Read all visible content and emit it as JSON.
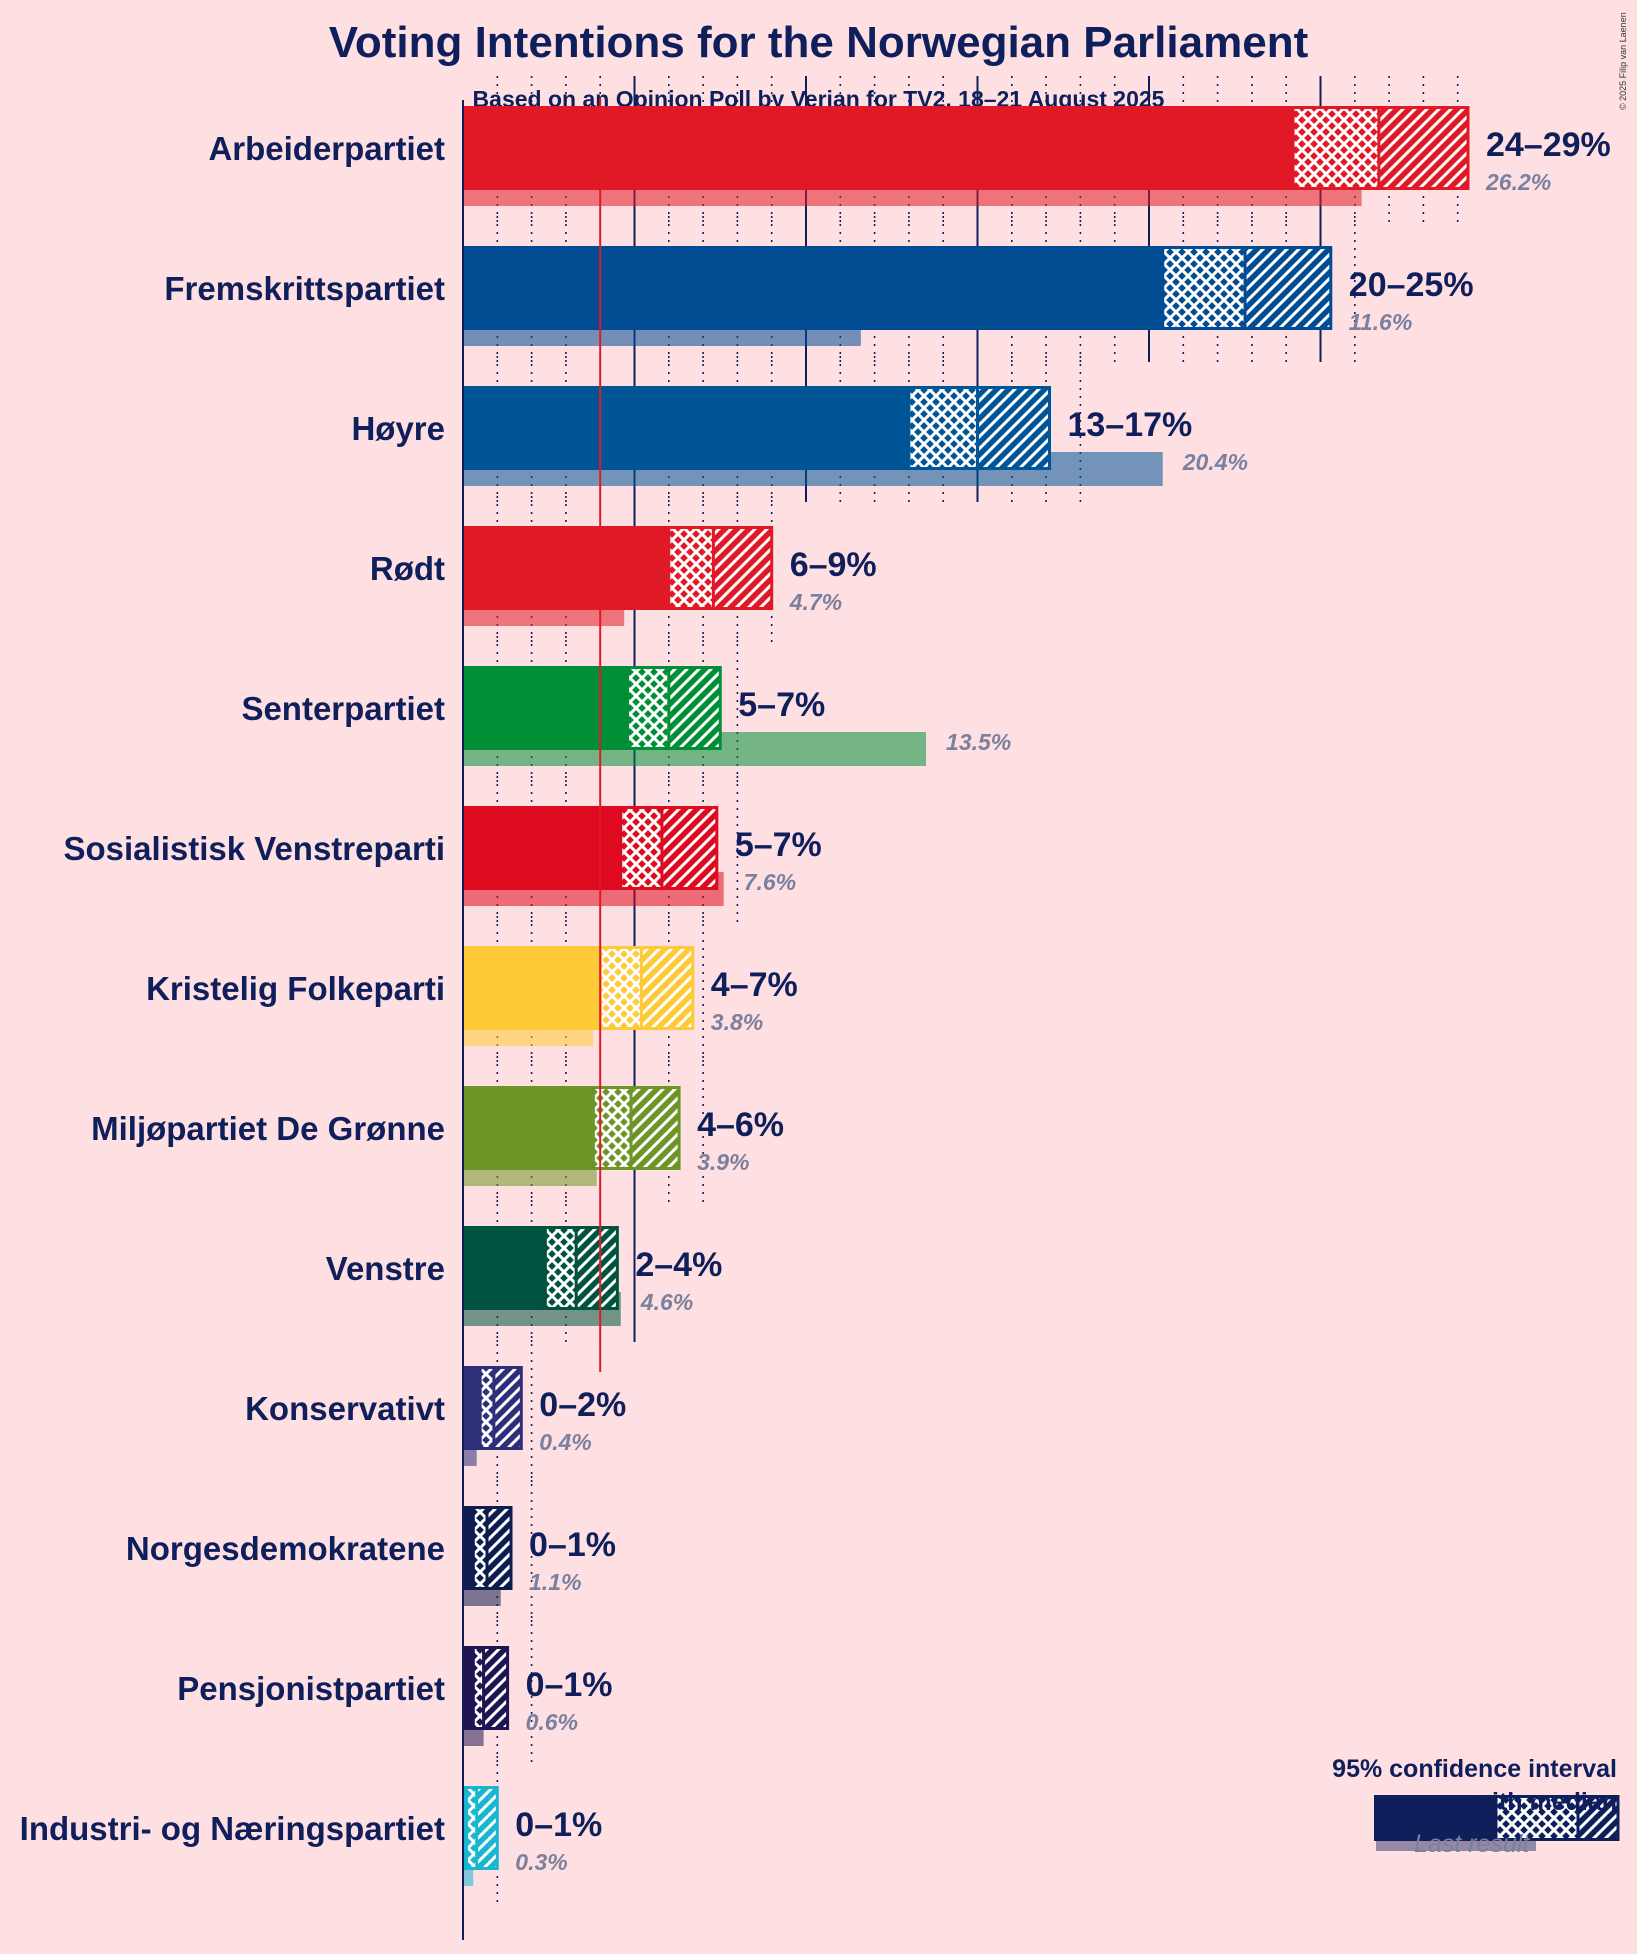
{
  "title": "Voting Intentions for the Norwegian Parliament",
  "subtitle": "Based on an Opinion Poll by Verian for TV2, 18–21 August 2025",
  "copyright": "© 2025 Filip van Laenen",
  "legend": {
    "line1": "95% confidence interval",
    "line2": "with median",
    "last_result": "Last result"
  },
  "chart_data": {
    "type": "bar",
    "orientation": "horizontal",
    "title": "Voting Intentions for the Norwegian Parliament",
    "subtitle": "Based on an Opinion Poll by Verian for TV2, 18–21 August 2025",
    "unit": "%",
    "threshold": 4,
    "x_range": [
      0,
      30
    ],
    "parties": [
      {
        "name": "Arbeiderpartiet",
        "color": "#E11926",
        "low": 24.2,
        "median": 26.7,
        "high": 29.3,
        "range_label": "24–29%",
        "last": 26.2,
        "last_label": "26.2%"
      },
      {
        "name": "Fremskrittspartiet",
        "color": "#024C93",
        "low": 20.4,
        "median": 22.8,
        "high": 25.3,
        "range_label": "20–25%",
        "last": 11.6,
        "last_label": "11.6%"
      },
      {
        "name": "Høyre",
        "color": "#005596",
        "low": 13.0,
        "median": 15.0,
        "high": 17.1,
        "range_label": "13–17%",
        "last": 20.4,
        "last_label": "20.4%"
      },
      {
        "name": "Rødt",
        "color": "#E11926",
        "low": 6.0,
        "median": 7.3,
        "high": 9.0,
        "range_label": "6–9%",
        "last": 4.7,
        "last_label": "4.7%"
      },
      {
        "name": "Senterpartiet",
        "color": "#008E36",
        "low": 4.8,
        "median": 6.0,
        "high": 7.5,
        "range_label": "5–7%",
        "last": 13.5,
        "last_label": "13.5%"
      },
      {
        "name": "Sosialistisk Venstreparti",
        "color": "#DE0A1F",
        "low": 4.6,
        "median": 5.8,
        "high": 7.4,
        "range_label": "5–7%",
        "last": 7.6,
        "last_label": "7.6%"
      },
      {
        "name": "Kristelig Folkeparti",
        "color": "#FFCA38",
        "low": 4.0,
        "median": 5.2,
        "high": 6.7,
        "range_label": "4–7%",
        "last": 3.8,
        "last_label": "3.8%"
      },
      {
        "name": "Miljøpartiet De Grønne",
        "color": "#6D9526",
        "low": 3.8,
        "median": 4.9,
        "high": 6.3,
        "range_label": "4–6%",
        "last": 3.9,
        "last_label": "3.9%"
      },
      {
        "name": "Venstre",
        "color": "#00533E",
        "low": 2.4,
        "median": 3.3,
        "high": 4.5,
        "range_label": "2–4%",
        "last": 4.6,
        "last_label": "4.6%"
      },
      {
        "name": "Konservativt",
        "color": "#2F2E79",
        "low": 0.5,
        "median": 0.9,
        "high": 1.7,
        "range_label": "0–2%",
        "last": 0.4,
        "last_label": "0.4%"
      },
      {
        "name": "Norgesdemokratene",
        "color": "#0E1D4F",
        "low": 0.3,
        "median": 0.7,
        "high": 1.4,
        "range_label": "0–1%",
        "last": 1.1,
        "last_label": "1.1%"
      },
      {
        "name": "Pensjonistpartiet",
        "color": "#1F1552",
        "low": 0.3,
        "median": 0.6,
        "high": 1.3,
        "range_label": "0–1%",
        "last": 0.6,
        "last_label": "0.6%"
      },
      {
        "name": "Industri- og Næringspartiet",
        "color": "#18B7CF",
        "low": 0.1,
        "median": 0.4,
        "high": 1.0,
        "range_label": "0–1%",
        "last": 0.3,
        "last_label": "0.3%"
      }
    ]
  }
}
